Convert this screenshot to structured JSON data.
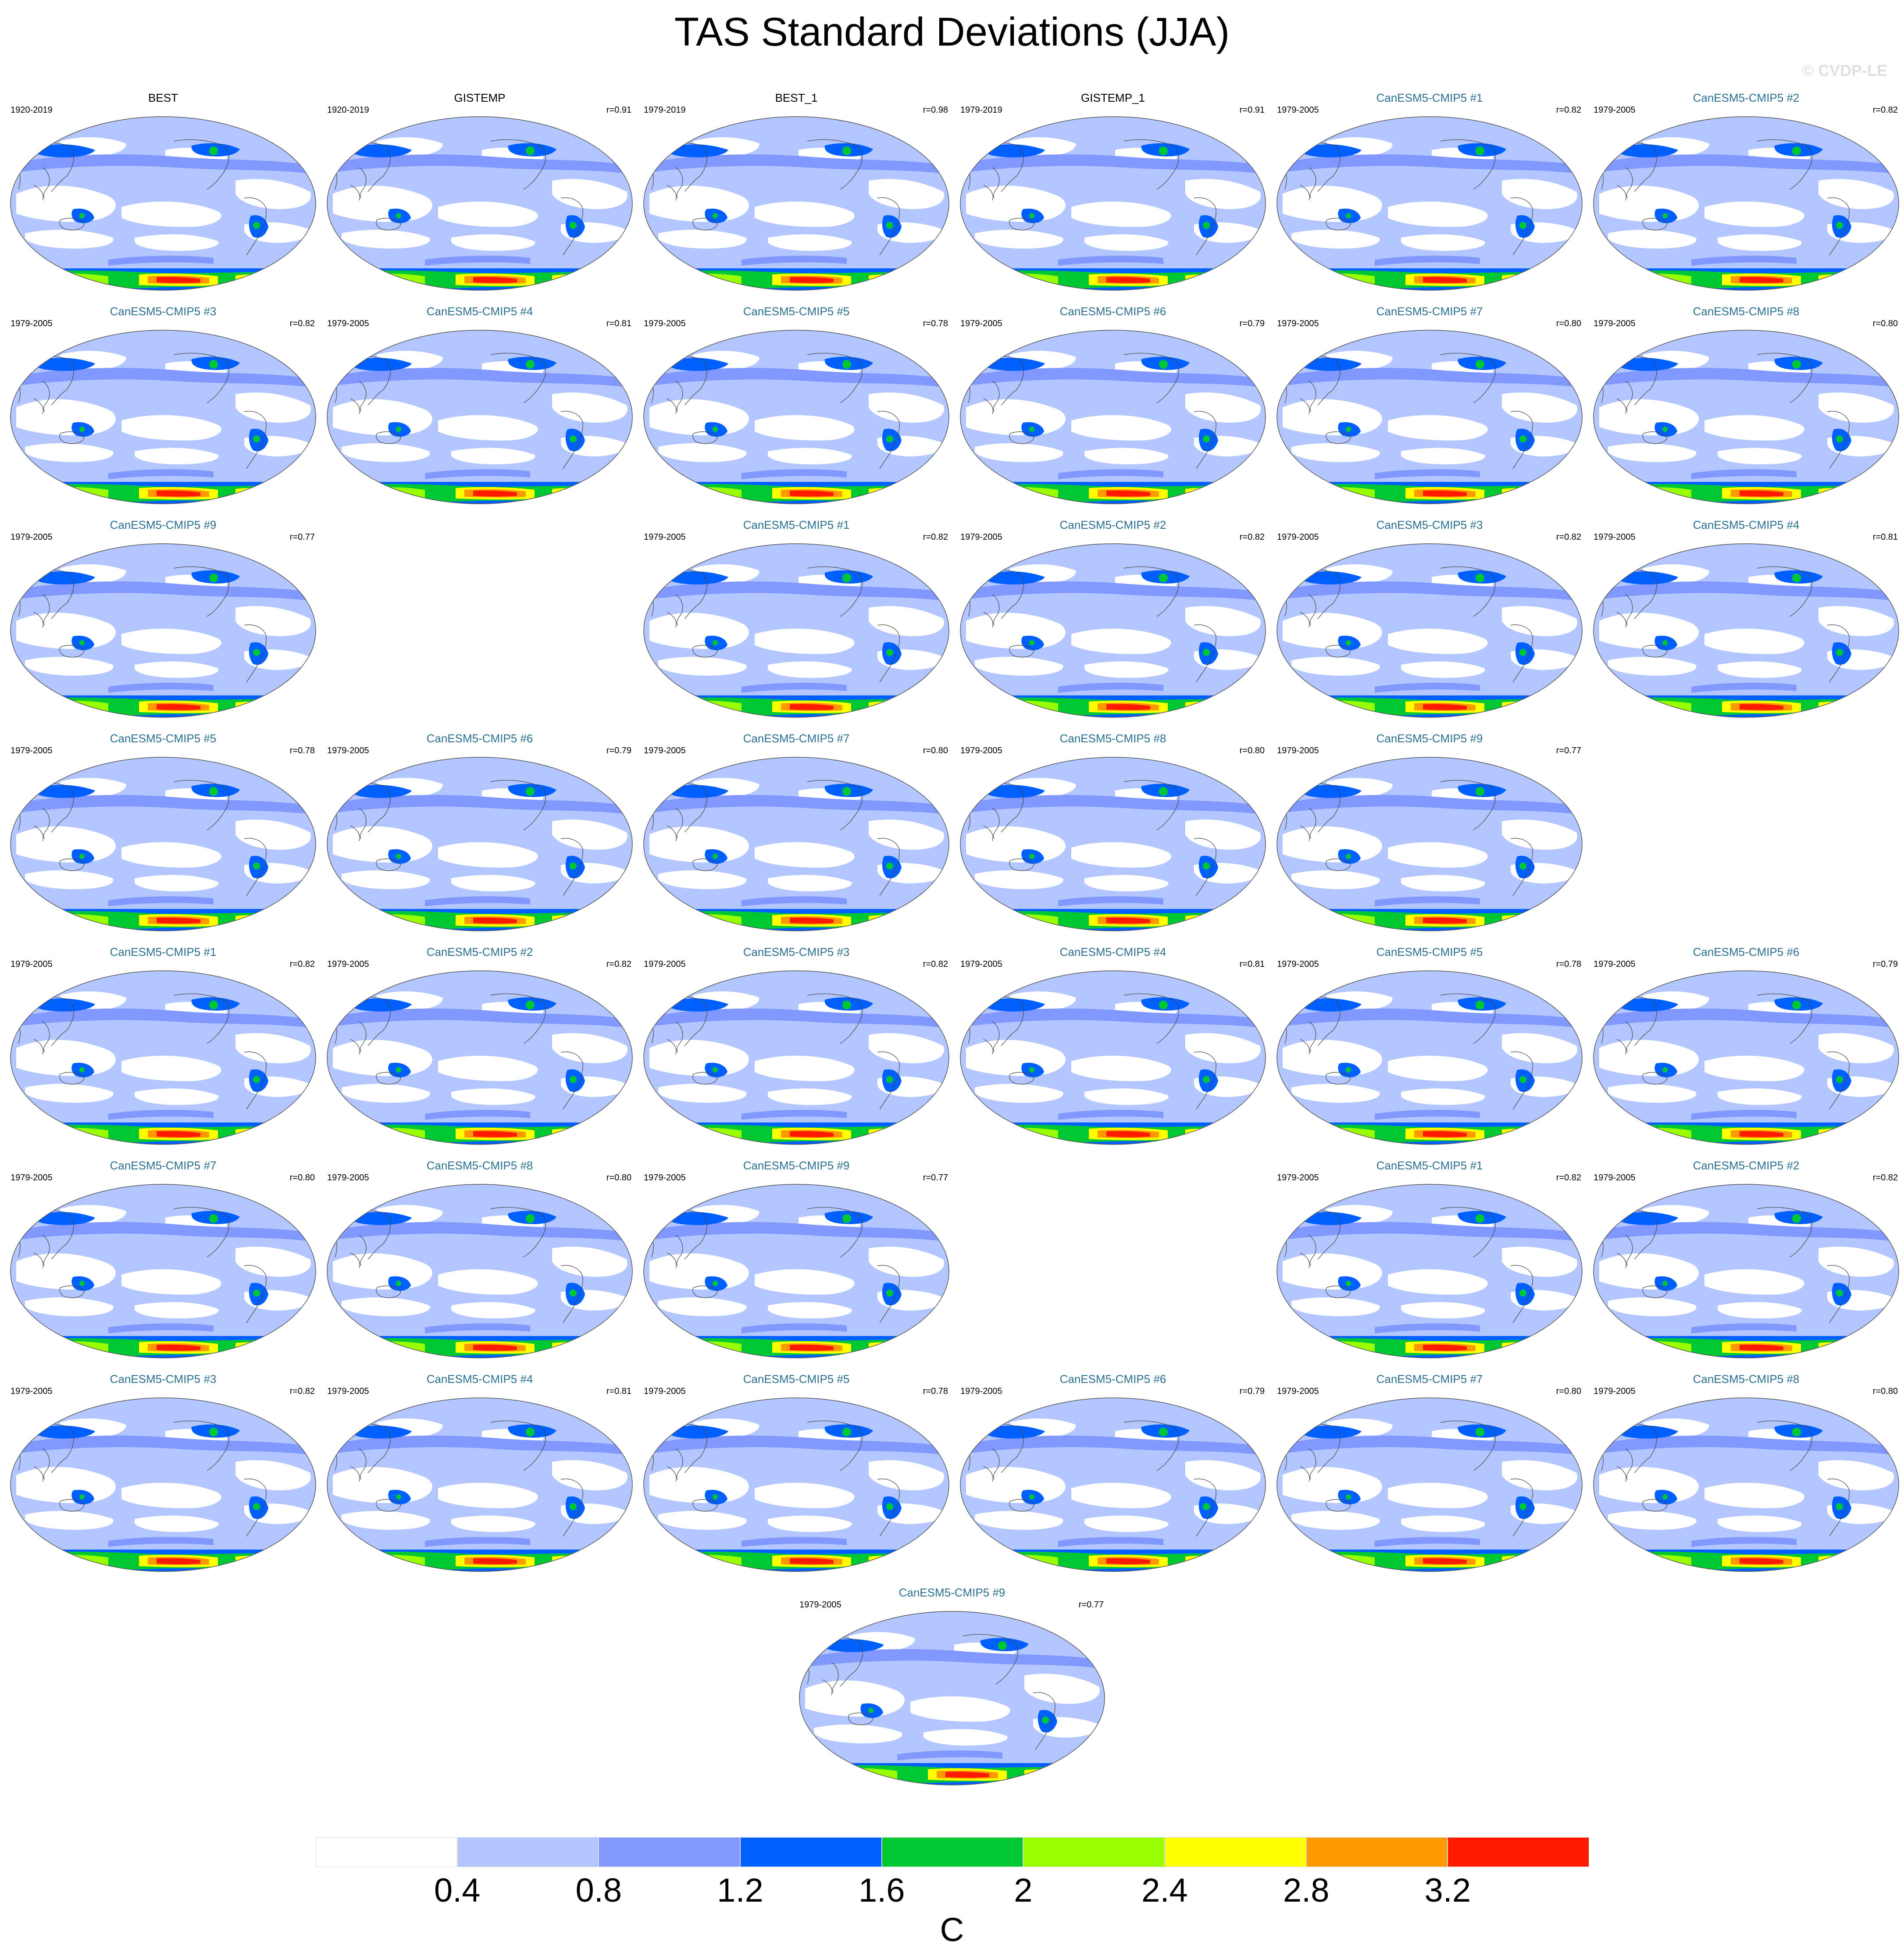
{
  "title": "TAS Standard Deviations (JJA)",
  "watermark": "© CVDP-LE",
  "colors": {
    "levels": [
      "#ffffff",
      "#b3c6ff",
      "#8098ff",
      "#0060ff",
      "#00c832",
      "#99ff00",
      "#ffff00",
      "#ff9900",
      "#ff1a00"
    ],
    "coast": "#444444",
    "panel_title_model": "#2a6f8f",
    "panel_title_obs": "#000000"
  },
  "chart_data": {
    "type": "heatmap",
    "projection": "robinson-like global map",
    "colorbar": {
      "boundaries": [
        0.4,
        0.8,
        1.2,
        1.6,
        2,
        2.4,
        2.8,
        3.2
      ],
      "tick_labels": [
        "0.4",
        "0.8",
        "1.2",
        "1.6",
        "2",
        "2.4",
        "2.8",
        "3.2"
      ],
      "unit": "C"
    },
    "panels": [
      {
        "title": "BEST",
        "years": "1920-2019",
        "r": "",
        "kind": "obs"
      },
      {
        "title": "GISTEMP",
        "years": "1920-2019",
        "r": "r=0.91",
        "kind": "obs"
      },
      {
        "title": "BEST_1",
        "years": "1979-2019",
        "r": "r=0.98",
        "kind": "obs"
      },
      {
        "title": "GISTEMP_1",
        "years": "1979-2019",
        "r": "r=0.91",
        "kind": "obs"
      },
      {
        "title": "CanESM5-CMIP5 #1",
        "years": "1979-2005",
        "r": "r=0.82",
        "kind": "model"
      },
      {
        "title": "CanESM5-CMIP5 #2",
        "years": "1979-2005",
        "r": "r=0.82",
        "kind": "model"
      },
      {
        "title": "CanESM5-CMIP5 #3",
        "years": "1979-2005",
        "r": "r=0.82",
        "kind": "model"
      },
      {
        "title": "CanESM5-CMIP5 #4",
        "years": "1979-2005",
        "r": "r=0.81",
        "kind": "model"
      },
      {
        "title": "CanESM5-CMIP5 #5",
        "years": "1979-2005",
        "r": "r=0.78",
        "kind": "model"
      },
      {
        "title": "CanESM5-CMIP5 #6",
        "years": "1979-2005",
        "r": "r=0.79",
        "kind": "model"
      },
      {
        "title": "CanESM5-CMIP5 #7",
        "years": "1979-2005",
        "r": "r=0.80",
        "kind": "model"
      },
      {
        "title": "CanESM5-CMIP5 #8",
        "years": "1979-2005",
        "r": "r=0.80",
        "kind": "model"
      },
      {
        "title": "CanESM5-CMIP5 #9",
        "years": "1979-2005",
        "r": "r=0.77",
        "kind": "model"
      },
      null,
      {
        "title": "CanESM5-CMIP5 #1",
        "years": "1979-2005",
        "r": "r=0.82",
        "kind": "model"
      },
      {
        "title": "CanESM5-CMIP5 #2",
        "years": "1979-2005",
        "r": "r=0.82",
        "kind": "model"
      },
      {
        "title": "CanESM5-CMIP5 #3",
        "years": "1979-2005",
        "r": "r=0.82",
        "kind": "model"
      },
      {
        "title": "CanESM5-CMIP5 #4",
        "years": "1979-2005",
        "r": "r=0.81",
        "kind": "model"
      },
      {
        "title": "CanESM5-CMIP5 #5",
        "years": "1979-2005",
        "r": "r=0.78",
        "kind": "model"
      },
      {
        "title": "CanESM5-CMIP5 #6",
        "years": "1979-2005",
        "r": "r=0.79",
        "kind": "model"
      },
      {
        "title": "CanESM5-CMIP5 #7",
        "years": "1979-2005",
        "r": "r=0.80",
        "kind": "model"
      },
      {
        "title": "CanESM5-CMIP5 #8",
        "years": "1979-2005",
        "r": "r=0.80",
        "kind": "model"
      },
      {
        "title": "CanESM5-CMIP5 #9",
        "years": "1979-2005",
        "r": "r=0.77",
        "kind": "model"
      },
      null,
      {
        "title": "CanESM5-CMIP5 #1",
        "years": "1979-2005",
        "r": "r=0.82",
        "kind": "model"
      },
      {
        "title": "CanESM5-CMIP5 #2",
        "years": "1979-2005",
        "r": "r=0.82",
        "kind": "model"
      },
      {
        "title": "CanESM5-CMIP5 #3",
        "years": "1979-2005",
        "r": "r=0.82",
        "kind": "model"
      },
      {
        "title": "CanESM5-CMIP5 #4",
        "years": "1979-2005",
        "r": "r=0.81",
        "kind": "model"
      },
      {
        "title": "CanESM5-CMIP5 #5",
        "years": "1979-2005",
        "r": "r=0.78",
        "kind": "model"
      },
      {
        "title": "CanESM5-CMIP5 #6",
        "years": "1979-2005",
        "r": "r=0.79",
        "kind": "model"
      },
      {
        "title": "CanESM5-CMIP5 #7",
        "years": "1979-2005",
        "r": "r=0.80",
        "kind": "model"
      },
      {
        "title": "CanESM5-CMIP5 #8",
        "years": "1979-2005",
        "r": "r=0.80",
        "kind": "model"
      },
      {
        "title": "CanESM5-CMIP5 #9",
        "years": "1979-2005",
        "r": "r=0.77",
        "kind": "model"
      },
      null,
      {
        "title": "CanESM5-CMIP5 #1",
        "years": "1979-2005",
        "r": "r=0.82",
        "kind": "model"
      },
      {
        "title": "CanESM5-CMIP5 #2",
        "years": "1979-2005",
        "r": "r=0.82",
        "kind": "model"
      },
      {
        "title": "CanESM5-CMIP5 #3",
        "years": "1979-2005",
        "r": "r=0.82",
        "kind": "model"
      },
      {
        "title": "CanESM5-CMIP5 #4",
        "years": "1979-2005",
        "r": "r=0.81",
        "kind": "model"
      },
      {
        "title": "CanESM5-CMIP5 #5",
        "years": "1979-2005",
        "r": "r=0.78",
        "kind": "model"
      },
      {
        "title": "CanESM5-CMIP5 #6",
        "years": "1979-2005",
        "r": "r=0.79",
        "kind": "model"
      },
      {
        "title": "CanESM5-CMIP5 #7",
        "years": "1979-2005",
        "r": "r=0.80",
        "kind": "model"
      },
      {
        "title": "CanESM5-CMIP5 #8",
        "years": "1979-2005",
        "r": "r=0.80",
        "kind": "model"
      },
      {
        "title": "CanESM5-CMIP5 #9",
        "years": "1979-2005",
        "r": "r=0.77",
        "kind": "model"
      }
    ]
  }
}
